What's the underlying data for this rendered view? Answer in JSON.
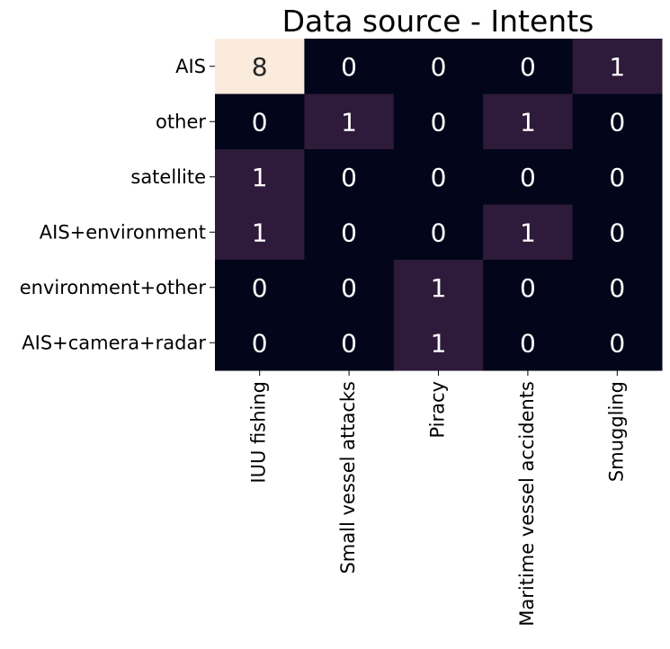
{
  "chart_data": {
    "type": "heatmap",
    "title": "Data source - Intents",
    "xlabel": "",
    "ylabel": "",
    "rows": [
      "AIS",
      "other",
      "satellite",
      "AIS+environment",
      "environment+other",
      "AIS+camera+radar"
    ],
    "columns": [
      "IUU fishing",
      "Small vessel attacks",
      "Piracy",
      "Maritime vessel accidents",
      "Smuggling"
    ],
    "values": [
      [
        8,
        0,
        0,
        0,
        1
      ],
      [
        0,
        1,
        0,
        1,
        0
      ],
      [
        1,
        0,
        0,
        0,
        0
      ],
      [
        1,
        0,
        0,
        1,
        0
      ],
      [
        0,
        0,
        1,
        0,
        0
      ],
      [
        0,
        0,
        1,
        0,
        0
      ]
    ],
    "colors": {
      "zero": "#03051a",
      "one": "#2e1a3a",
      "max": "#faebdd",
      "text_light": "#ffffff",
      "text_dark": "#262626",
      "axis": "#000000"
    },
    "colorbar": false,
    "grid": false,
    "legend": "none"
  }
}
